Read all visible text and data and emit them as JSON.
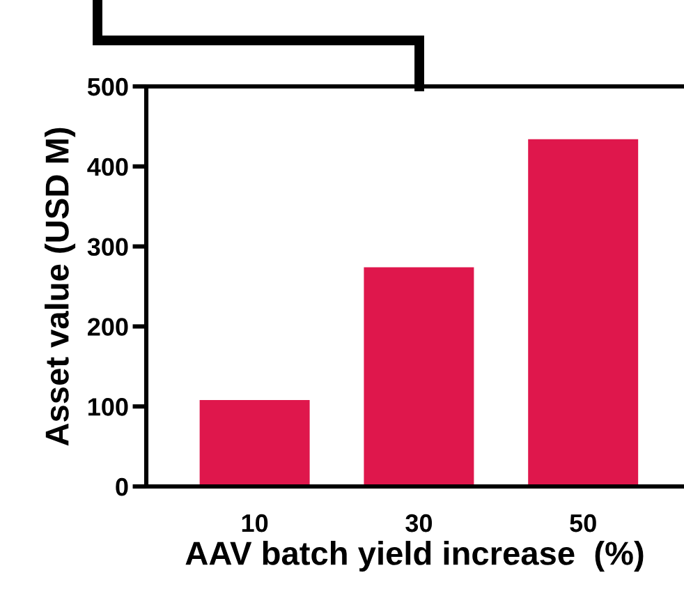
{
  "chart_data": {
    "type": "bar",
    "xlabel": "AAV batch yield increase  (%)",
    "ylabel": "Asset value (USD M)",
    "categories": [
      "10",
      "30",
      "50"
    ],
    "values": [
      108,
      274,
      434
    ],
    "color": "#df174c",
    "ylim": [
      0,
      500
    ],
    "yticks": [
      0,
      100,
      200,
      300,
      400,
      500
    ],
    "grid": false,
    "legend": false
  }
}
